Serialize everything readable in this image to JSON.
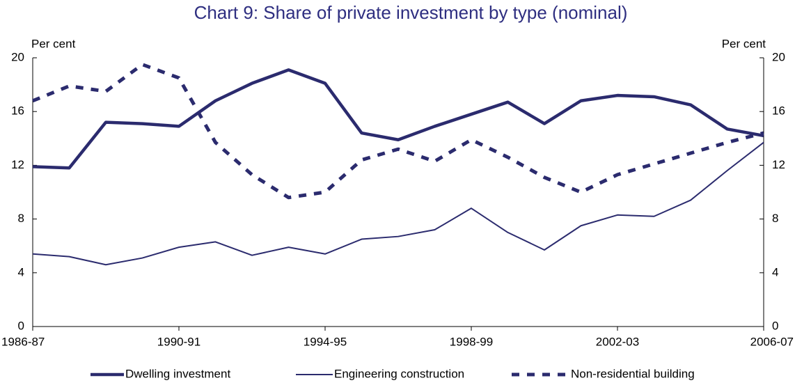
{
  "chart_data": {
    "type": "line",
    "title": "Chart 9: Share of private investment by type (nominal)",
    "y_label": "Per cent",
    "y2_label": "Per cent",
    "categories": [
      "1986-87",
      null,
      null,
      null,
      "1990-91",
      null,
      null,
      null,
      "1994-95",
      null,
      null,
      null,
      "1998-99",
      null,
      null,
      null,
      "2002-03",
      null,
      null,
      null,
      "2006-07"
    ],
    "ylim": [
      0,
      20
    ],
    "yticks": [
      0,
      4,
      8,
      12,
      16,
      20
    ],
    "y2lim": [
      0,
      20
    ],
    "y2ticks": [
      0,
      4,
      8,
      12,
      16,
      20
    ],
    "series": [
      {
        "name": "Dwelling investment",
        "color": "#2b2b6e",
        "width": 4.5,
        "dash": false,
        "values": [
          11.9,
          11.8,
          15.2,
          15.1,
          14.9,
          16.8,
          18.1,
          19.1,
          18.1,
          14.4,
          13.9,
          14.9,
          15.8,
          16.7,
          15.1,
          16.8,
          17.2,
          17.1,
          16.5,
          14.7,
          14.2
        ]
      },
      {
        "name": "Engineering construction",
        "color": "#2b2b6e",
        "width": 2,
        "dash": false,
        "values": [
          5.4,
          5.2,
          4.6,
          5.1,
          5.9,
          6.3,
          5.3,
          5.9,
          5.4,
          6.5,
          6.7,
          7.2,
          8.8,
          7.0,
          5.7,
          7.5,
          8.3,
          8.2,
          9.4,
          11.6,
          13.7
        ]
      },
      {
        "name": "Non-residential building",
        "color": "#2b2b6e",
        "width": 5,
        "dash": true,
        "values": [
          16.8,
          17.9,
          17.5,
          19.5,
          18.5,
          13.7,
          11.3,
          9.6,
          10.0,
          12.4,
          13.2,
          12.3,
          13.9,
          12.6,
          11.1,
          10.0,
          11.3,
          12.1,
          12.9,
          13.7,
          14.4
        ]
      }
    ]
  }
}
